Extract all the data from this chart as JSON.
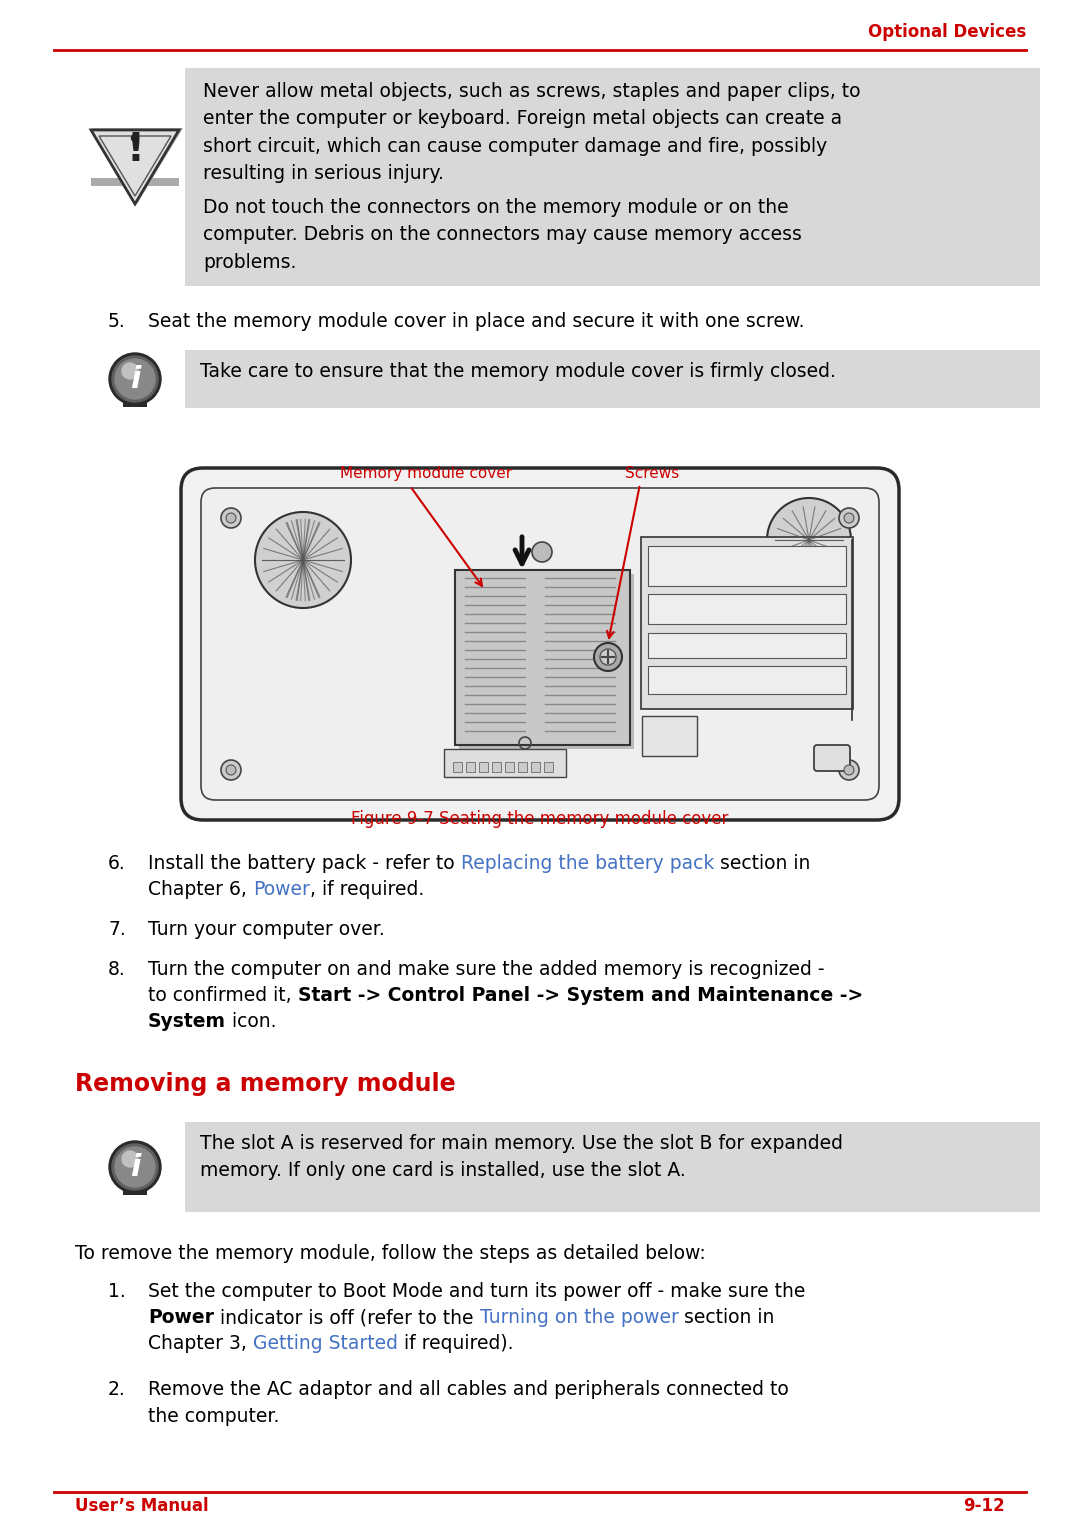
{
  "page_title": "Optional Devices",
  "footer_left": "User’s Manual",
  "footer_right": "9-12",
  "red_color": "#CC0000",
  "blue_color": "#4472C4",
  "bg_color": "#FFFFFF",
  "note_bg": "#D8D8D8",
  "body_font": "DejaVu Sans",
  "body_fs": 13.5,
  "warn_text1": "Never allow metal objects, such as screws, staples and paper clips, to enter the computer or keyboard. Foreign metal objects can create a short circuit, which can cause computer damage and fire, possibly resulting in serious injury.",
  "warn_text2": "Do not touch the connectors on the memory module or on the computer. Debris on the connectors may cause memory access problems.",
  "step5": "Seat the memory module cover in place and secure it with one screw.",
  "info1": "Take care to ensure that the memory module cover is firmly closed.",
  "fig_caption": "Figure 9-7 Seating the memory module cover",
  "label_mem": "Memory module cover",
  "label_screw": "Screws",
  "step7": "Turn your computer over.",
  "info2": "The slot A is reserved for main memory. Use the slot B for expanded\nmemory. If only one card is installed, use the slot A.",
  "para_intro": "To remove the memory module, follow the steps as detailed below:",
  "sub2": "Remove the AC adaptor and all cables and peripherals connected to\nthe computer."
}
